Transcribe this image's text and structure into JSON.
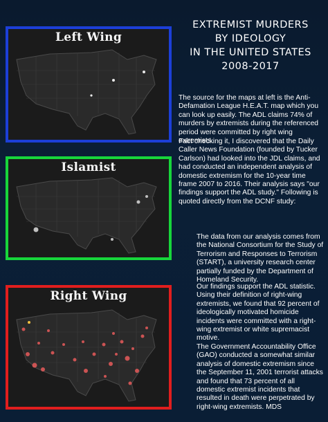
{
  "maps": {
    "left": {
      "title": "Left Wing",
      "color": "#1c3fd8"
    },
    "islamist": {
      "title": "Islamist",
      "color": "#17d63b"
    },
    "right": {
      "title": "Right Wing",
      "color": "#e01e1e"
    }
  },
  "heading": {
    "line1": "EXTREMIST MURDERS",
    "line2": "BY IDEOLOGY",
    "line3": "IN THE UNITED STATES",
    "line4": "2008-2017"
  },
  "paragraphs": {
    "p1": "The source  for the maps at left is the Anti-Defamation League H.E.A.T. map which you can look up easily. The ADL claims 74% of murders by extremists during the referenced period were committed by right wing extremists.",
    "p2": "Fact checking it, I discovered that the Daily Caller News Foundation (founded by Tucker Carlson) had looked into the JDL claims, and had conducted an independent analysis of domestic extremism for the 10-year time frame 2007 to 2016.  Their analysis says \"our findings support the ADL study.\" Following is quoted directly from the DCNF study:",
    "p3": "The data from our analysis comes from the National Consortium for the Study of Terrorism and Responses to Terrorism (START), a university research center partially funded by the Department of Homeland Security.",
    "p4": "Our findings support the ADL statistic. Using their definition of right-wing extremists, we found that 92 percent of ideologically motivated homicide incidents were committed with a right-wing extremist or white supremacist motive.",
    "p5": "The Government Accountability Office (GAO) conducted a somewhat similar analysis of domestic extremism since the September 11, 2001 terrorist attacks and found that 73 percent of all domestic extremist incidents that resulted in death were perpetrated by right-wing extremists. MDS"
  }
}
